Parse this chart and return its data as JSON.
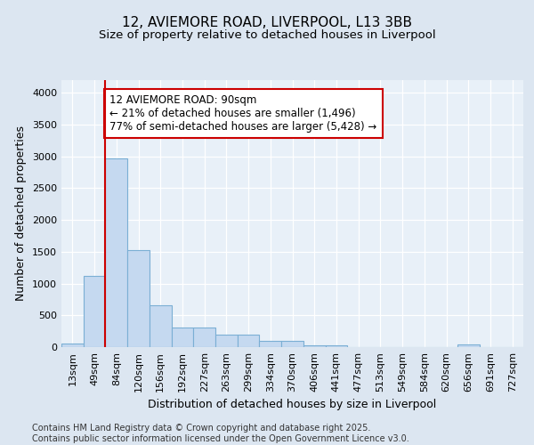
{
  "title1": "12, AVIEMORE ROAD, LIVERPOOL, L13 3BB",
  "title2": "Size of property relative to detached houses in Liverpool",
  "xlabel": "Distribution of detached houses by size in Liverpool",
  "ylabel": "Number of detached properties",
  "categories": [
    "13sqm",
    "49sqm",
    "84sqm",
    "120sqm",
    "156sqm",
    "192sqm",
    "227sqm",
    "263sqm",
    "299sqm",
    "334sqm",
    "370sqm",
    "406sqm",
    "441sqm",
    "477sqm",
    "513sqm",
    "549sqm",
    "584sqm",
    "620sqm",
    "656sqm",
    "691sqm",
    "727sqm"
  ],
  "values": [
    50,
    1120,
    2970,
    1530,
    660,
    310,
    310,
    190,
    190,
    95,
    95,
    30,
    30,
    5,
    5,
    5,
    5,
    5,
    40,
    5,
    5
  ],
  "bar_color": "#c5d9f0",
  "bar_edge_color": "#7bafd4",
  "vline_color": "#cc0000",
  "annotation_text": "12 AVIEMORE ROAD: 90sqm\n← 21% of detached houses are smaller (1,496)\n77% of semi-detached houses are larger (5,428) →",
  "annotation_box_color": "#ffffff",
  "annotation_box_edge": "#cc0000",
  "ylim": [
    0,
    4200
  ],
  "yticks": [
    0,
    500,
    1000,
    1500,
    2000,
    2500,
    3000,
    3500,
    4000
  ],
  "background_color": "#dce6f1",
  "plot_bg_color": "#e8f0f8",
  "footer": "Contains HM Land Registry data © Crown copyright and database right 2025.\nContains public sector information licensed under the Open Government Licence v3.0.",
  "title_fontsize": 11,
  "subtitle_fontsize": 9.5,
  "axis_label_fontsize": 9,
  "tick_fontsize": 8,
  "footer_fontsize": 7,
  "annotation_fontsize": 8.5
}
